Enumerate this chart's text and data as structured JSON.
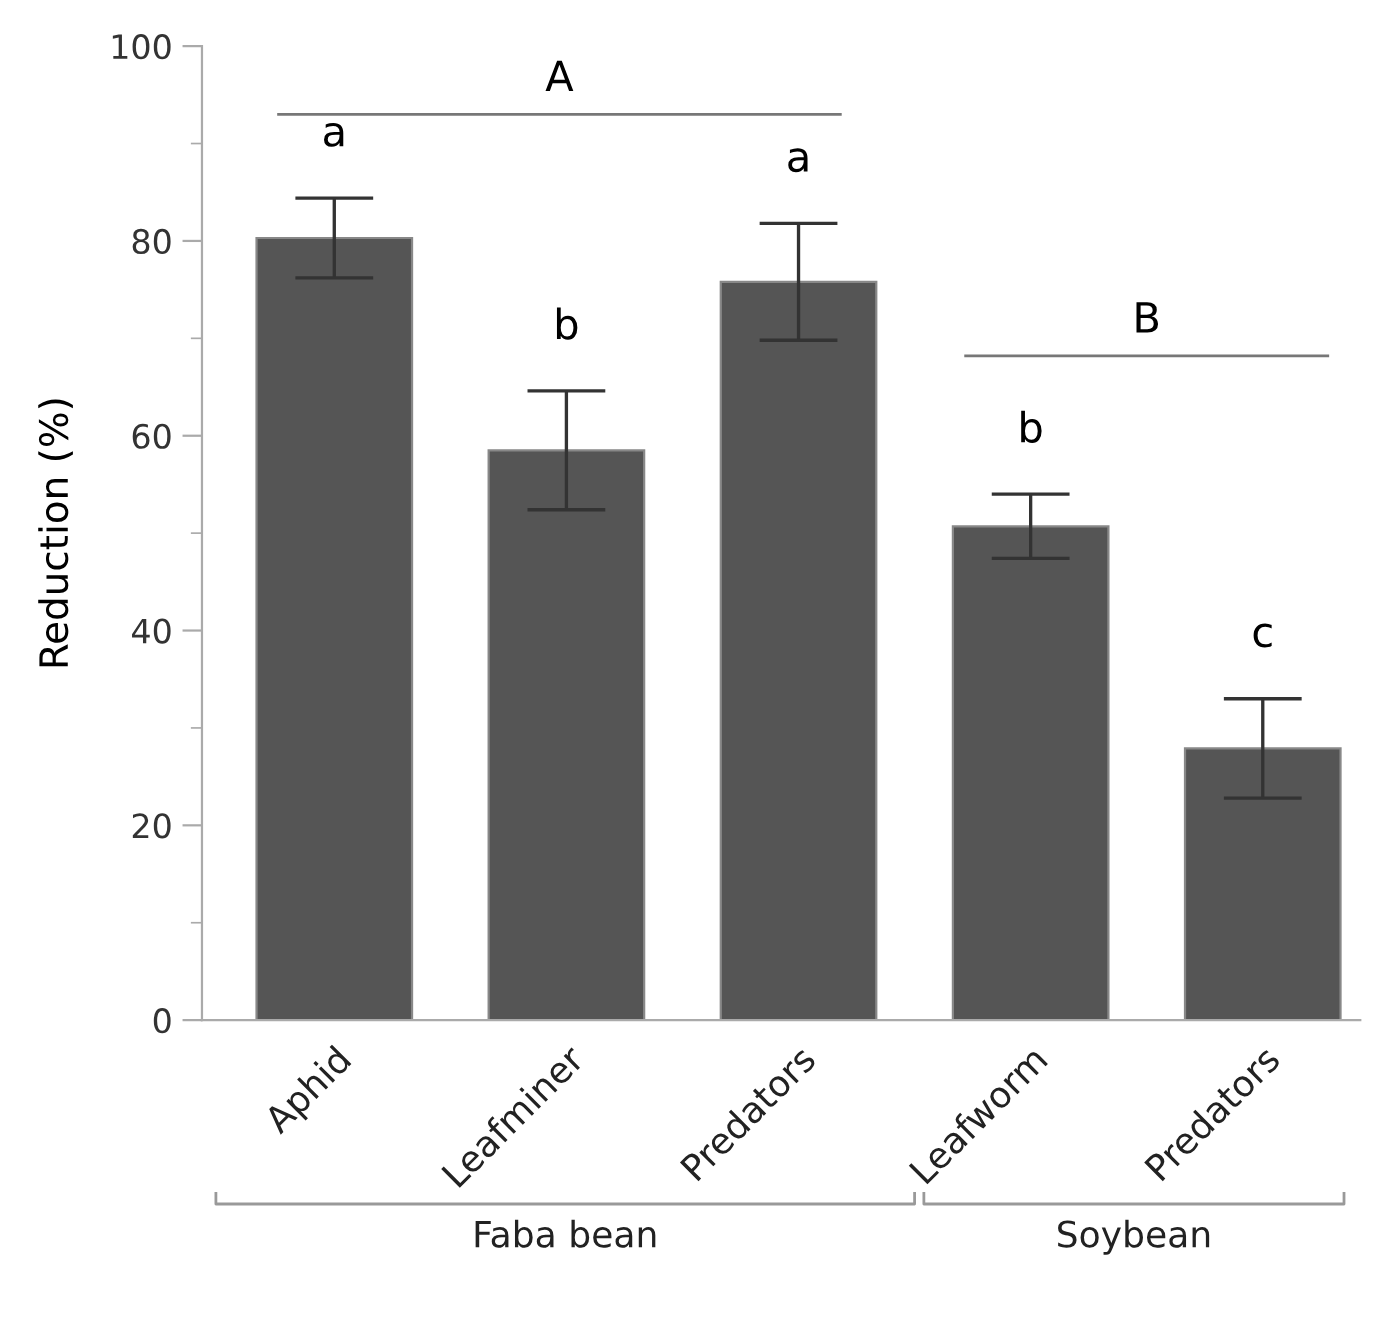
{
  "chart_data": {
    "type": "bar",
    "ylabel": "Reduction (%)",
    "categories": [
      "Aphid",
      "Leafminer",
      "Predators",
      "Leafworm",
      "Predators"
    ],
    "values": [
      80.3,
      58.5,
      75.8,
      50.7,
      27.9
    ],
    "errors": [
      4.1,
      6.1,
      6.0,
      3.3,
      5.1
    ],
    "color": "#555555",
    "ylim": [
      0,
      100
    ],
    "yticks": [
      0,
      20,
      40,
      60,
      80,
      100
    ],
    "grid": false,
    "legend": false,
    "annotations": [
      "a",
      "b",
      "a",
      "b",
      "c",
      "A",
      "B",
      "Faba bean",
      "Soybean"
    ]
  }
}
